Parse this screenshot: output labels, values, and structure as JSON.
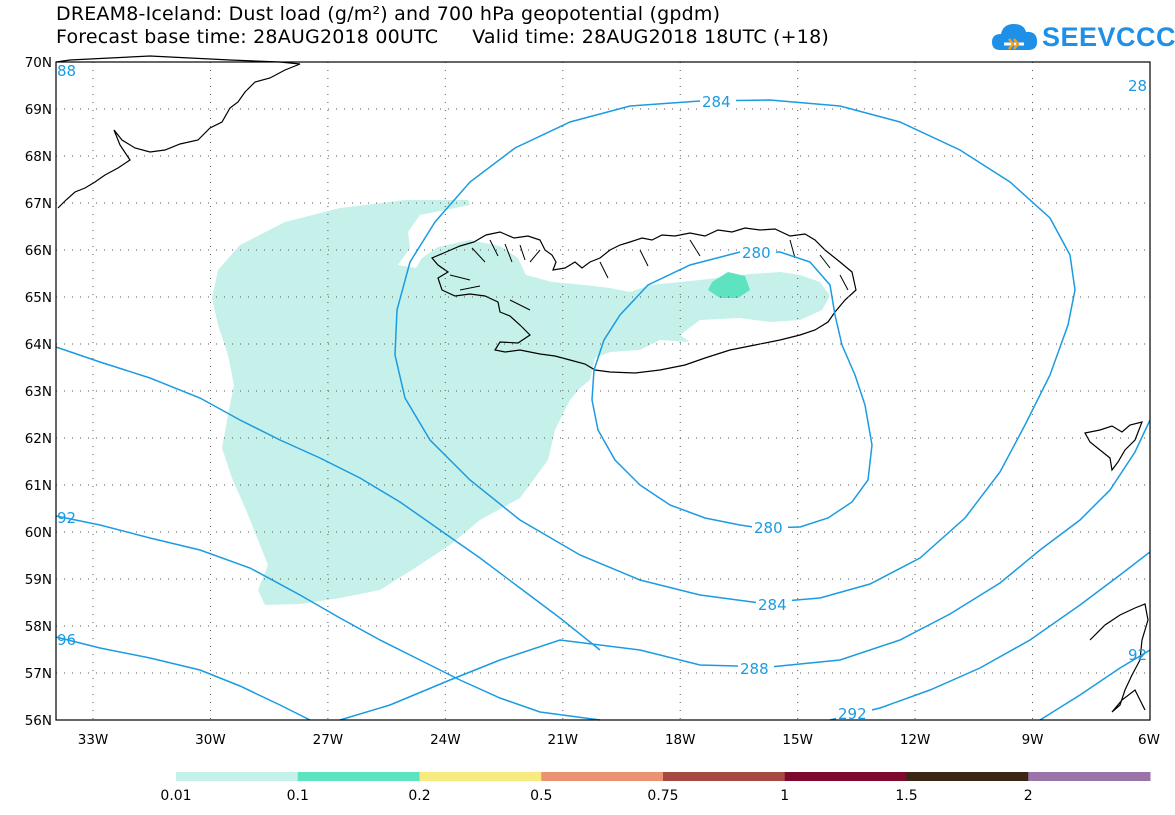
{
  "header": {
    "title_line1": "DREAM8-Iceland: Dust load (g/m²) and 700 hPa geopotential (gpdm)",
    "title_line2_base": "Forecast base time: 28AUG2018 00UTC",
    "title_line2_valid": "Valid time: 28AUG2018 18UTC (+18)"
  },
  "logo": {
    "text": "SEEVCCC"
  },
  "axes": {
    "lat_labels": [
      "70N",
      "69N",
      "68N",
      "67N",
      "66N",
      "65N",
      "64N",
      "63N",
      "62N",
      "61N",
      "60N",
      "59N",
      "58N",
      "57N",
      "56N"
    ],
    "lon_labels": [
      "33W",
      "30W",
      "27W",
      "24W",
      "21W",
      "18W",
      "15W",
      "12W",
      "9W",
      "6W"
    ]
  },
  "contours": {
    "labels": [
      "284",
      "280",
      "280",
      "284",
      "288",
      "292",
      "92",
      "96",
      "88",
      "28",
      "92"
    ]
  },
  "colorbar": {
    "colors": [
      "#c5f1ea",
      "#5ee3c0",
      "#f6ea80",
      "#ea9271",
      "#a54a42",
      "#7d0a2e",
      "#3a2612",
      "#9a73a8"
    ],
    "labels": [
      "0.01",
      "0.1",
      "0.2",
      "0.5",
      "0.75",
      "1",
      "1.5",
      "2"
    ]
  },
  "colors": {
    "contour": "#1b9be2",
    "coast": "#000000",
    "dust_low": "#c5f1ea",
    "dust_mid": "#5ee3c0"
  }
}
